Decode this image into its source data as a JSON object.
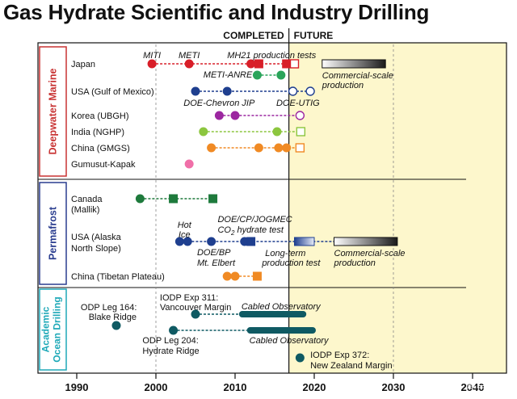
{
  "chart_data": {
    "type": "timeline",
    "title": "Gas Hydrate Scientific and Industry Drilling",
    "header_completed": "COMPLETED",
    "header_future": "FUTURE",
    "present_year": 2016.8,
    "x_ticks": [
      1990,
      2000,
      2010,
      2020,
      2030,
      2040
    ],
    "x_range": [
      1986,
      2042
    ],
    "colors": {
      "future_shade": "#fdf7cc",
      "japan": "#d81e28",
      "usa_gom": "#1f3f8f",
      "korea": "#9c27a0",
      "india": "#8cc63f",
      "china_gmgs": "#f08a24",
      "gumusut": "#f06fa8",
      "canada": "#1e7a3c",
      "alaska": "#1f3f8f",
      "tibet": "#f08a24",
      "ocean": "#0f5a63",
      "marine_box": "#c83232",
      "permafrost_box": "#2a3d8f",
      "ocean_box": "#1fa9b8"
    },
    "groups": [
      {
        "name": "Deepwater Marine",
        "rows": [
          {
            "label": "Japan",
            "color_key": "japan",
            "dash_from": 1999.5,
            "dash_to": 2017.8,
            "points": [
              {
                "year": 1999.5,
                "shape": "circle"
              },
              {
                "year": 2004.2,
                "shape": "circle"
              },
              {
                "year": 2012,
                "shape": "circle"
              },
              {
                "year": 2013,
                "shape": "square"
              },
              {
                "year": 2016.5,
                "shape": "square"
              },
              {
                "year": 2017.5,
                "shape": "square-open"
              }
            ],
            "bar": {
              "from": 2021,
              "to": 2029
            }
          },
          {
            "label": "",
            "color_key": "china_gmgs",
            "dash_from": 0,
            "dash_to": 0,
            "points": [],
            "marker_color": "#2aa45a",
            "extra_points": [
              {
                "year": 2012.8
              },
              {
                "year": 2015.8
              }
            ]
          },
          {
            "label": "USA (Gulf of Mexico)",
            "color_key": "usa_gom",
            "dash_from": 2005,
            "dash_to": 2019.5,
            "points": [
              {
                "year": 2005,
                "shape": "circle"
              },
              {
                "year": 2009,
                "shape": "circle"
              },
              {
                "year": 2017.3,
                "shape": "circle-open"
              },
              {
                "year": 2019.5,
                "shape": "circle-open"
              }
            ]
          },
          {
            "label": "Korea (UBGH)",
            "color_key": "korea",
            "dash_from": 2008,
            "dash_to": 2018.2,
            "points": [
              {
                "year": 2008,
                "shape": "circle"
              },
              {
                "year": 2010,
                "shape": "circle"
              },
              {
                "year": 2018.2,
                "shape": "circle-open"
              }
            ]
          },
          {
            "label": "India (NGHP)",
            "color_key": "india",
            "dash_from": 2006,
            "dash_to": 2018.3,
            "points": [
              {
                "year": 2006,
                "shape": "circle"
              },
              {
                "year": 2015.3,
                "shape": "circle"
              },
              {
                "year": 2018.3,
                "shape": "square-open"
              }
            ]
          },
          {
            "label": "China (GMGS)",
            "color_key": "china_gmgs",
            "dash_from": 2007,
            "dash_to": 2018.2,
            "points": [
              {
                "year": 2007,
                "shape": "circle"
              },
              {
                "year": 2013,
                "shape": "circle"
              },
              {
                "year": 2015.5,
                "shape": "circle"
              },
              {
                "year": 2016.5,
                "shape": "circle"
              },
              {
                "year": 2018.2,
                "shape": "square-open"
              }
            ]
          },
          {
            "label": "Gumusut-Kapak",
            "color_key": "gumusut",
            "dash_from": 0,
            "dash_to": 0,
            "points": [
              {
                "year": 2004.2,
                "shape": "circle"
              }
            ]
          }
        ]
      },
      {
        "name": "Permafrost",
        "rows": [
          {
            "label": "Canada",
            "label2": "(Mallik)",
            "color_key": "canada",
            "dash_from": 1998,
            "dash_to": 2007.2,
            "points": [
              {
                "year": 1998,
                "shape": "circle"
              },
              {
                "year": 2002.2,
                "shape": "square"
              },
              {
                "year": 2007.2,
                "shape": "square"
              }
            ]
          },
          {
            "label": "USA (Alaska",
            "label2": "North Slope)",
            "color_key": "alaska",
            "dash_from": 2003,
            "dash_to": 2022,
            "points": [
              {
                "year": 2003,
                "shape": "circle"
              },
              {
                "year": 2004,
                "shape": "circle"
              },
              {
                "year": 2007,
                "shape": "circle"
              },
              {
                "year": 2011.2,
                "shape": "circle"
              },
              {
                "year": 2012,
                "shape": "square"
              }
            ],
            "bar1": {
              "from": 2017.5,
              "to": 2020
            },
            "bar2": {
              "from": 2022.5,
              "to": 2030.5
            }
          },
          {
            "label": "China (Tibetan Plateau)",
            "color_key": "tibet",
            "dash_from": 2009,
            "dash_to": 2012.8,
            "points": [
              {
                "year": 2009,
                "shape": "circle"
              },
              {
                "year": 2010,
                "shape": "circle"
              },
              {
                "year": 2012.8,
                "shape": "square"
              }
            ]
          }
        ]
      },
      {
        "name": "Academic Ocean Drilling",
        "rows": []
      }
    ],
    "annotations": {
      "miti": "MITI",
      "meti": "METI",
      "mh21": "MH21 production tests",
      "meti_anre": "METI-ANRE",
      "commercial1": "Commercial-scale",
      "commercial1b": "production",
      "doe_chevron": "DOE-Chevron JIP",
      "doe_utig": "DOE-UTIG",
      "hot_ice1": "Hot",
      "hot_ice2": "Ice",
      "doe_cp1": "DOE/CP/JOGMEC",
      "doe_cp2a": "CO",
      "doe_cp2b": "2",
      "doe_cp2c": " hydrate test",
      "doe_bp1": "DOE/BP",
      "doe_bp2": "Mt. Elbert",
      "longterm1": "Long-term",
      "longterm2": "production test",
      "commercial2": "Commercial-scale",
      "commercial2b": "production",
      "iodp311a": "IODP Exp 311:",
      "iodp311b": "Vancouver Margin",
      "cabled1": "Cabled Observatory",
      "odp164a": "ODP Leg 164:",
      "odp164b": "Blake Ridge",
      "cabled2": "Cabled Observatory",
      "odp204a": "ODP Leg 204:",
      "odp204b": "Hydrate Ridge",
      "iodp372a": "IODP Exp 372:",
      "iodp372b": "New Zealand Margin"
    },
    "ocean": {
      "odp164_year": 1995,
      "iodp311_year": 2005,
      "iodp311_bar": {
        "from": 2010.5,
        "to": 2019
      },
      "odp204_year": 2002.2,
      "odp204_bar": {
        "from": 2011.5,
        "to": 2020.2
      },
      "iodp372_year": 2018.2
    },
    "watermark": "震旦能源"
  }
}
